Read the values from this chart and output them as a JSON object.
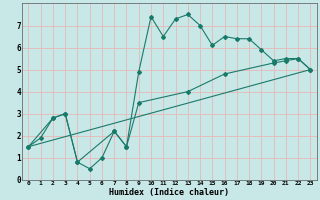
{
  "xlabel": "Humidex (Indice chaleur)",
  "bg_color": "#c8e8e8",
  "grid_color": "#e8b8b8",
  "line_color": "#1a7a6a",
  "xlim": [
    -0.5,
    23.5
  ],
  "ylim": [
    0,
    8
  ],
  "xticks": [
    0,
    1,
    2,
    3,
    4,
    5,
    6,
    7,
    8,
    9,
    10,
    11,
    12,
    13,
    14,
    15,
    16,
    17,
    18,
    19,
    20,
    21,
    22,
    23
  ],
  "yticks": [
    0,
    1,
    2,
    3,
    4,
    5,
    6,
    7
  ],
  "series1_x": [
    0,
    1,
    2,
    3,
    4,
    5,
    6,
    7,
    8,
    9,
    10,
    11,
    12,
    13,
    14,
    15,
    16,
    17,
    18,
    19,
    20,
    21,
    22,
    23
  ],
  "series1_y": [
    1.5,
    1.9,
    2.8,
    3.0,
    0.8,
    0.5,
    1.0,
    2.2,
    1.5,
    4.9,
    7.4,
    6.5,
    7.3,
    7.5,
    7.0,
    6.1,
    6.5,
    6.4,
    6.4,
    5.9,
    5.4,
    5.5,
    5.5,
    5.0
  ],
  "series2_x": [
    0,
    2,
    3,
    4,
    7,
    8,
    9,
    13,
    16,
    20,
    21,
    22,
    23
  ],
  "series2_y": [
    1.5,
    2.8,
    3.0,
    0.8,
    2.2,
    1.5,
    3.5,
    4.0,
    4.8,
    5.3,
    5.4,
    5.5,
    5.0
  ],
  "series3_x": [
    0,
    23
  ],
  "series3_y": [
    1.5,
    5.0
  ]
}
